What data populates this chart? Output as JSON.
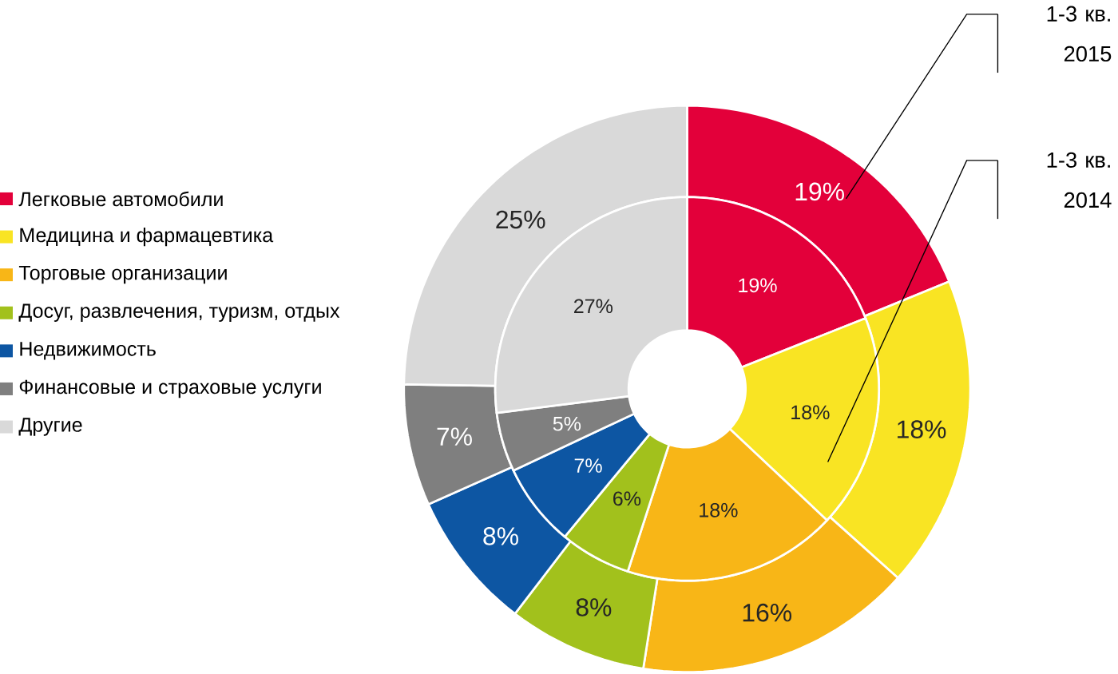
{
  "chart_data": {
    "type": "donut",
    "categories": [
      "Легковые автомобили",
      "Медицина и фармацевтика",
      "Торговые организации",
      "Досуг, развлечения, туризм, отдых",
      "Недвижимость",
      "Финансовые и страховые услуги",
      "Другие"
    ],
    "colors": [
      "#e3003a",
      "#f9e423",
      "#f8b617",
      "#a2c11c",
      "#0d56a3",
      "#7f7f7f",
      "#d9d9d9"
    ],
    "series": [
      {
        "name": "1-3 кв. 2015",
        "values": [
          19,
          18,
          16,
          8,
          8,
          7,
          25
        ],
        "value_labels": [
          "19%",
          "18%",
          "16%",
          "8%",
          "8%",
          "7%",
          "25%"
        ]
      },
      {
        "name": "1-3 кв. 2014",
        "values": [
          19,
          18,
          18,
          6,
          7,
          5,
          27
        ],
        "value_labels": [
          "19%",
          "18%",
          "18%",
          "6%",
          "7%",
          "5%",
          "27%"
        ]
      }
    ],
    "legend": "left"
  }
}
